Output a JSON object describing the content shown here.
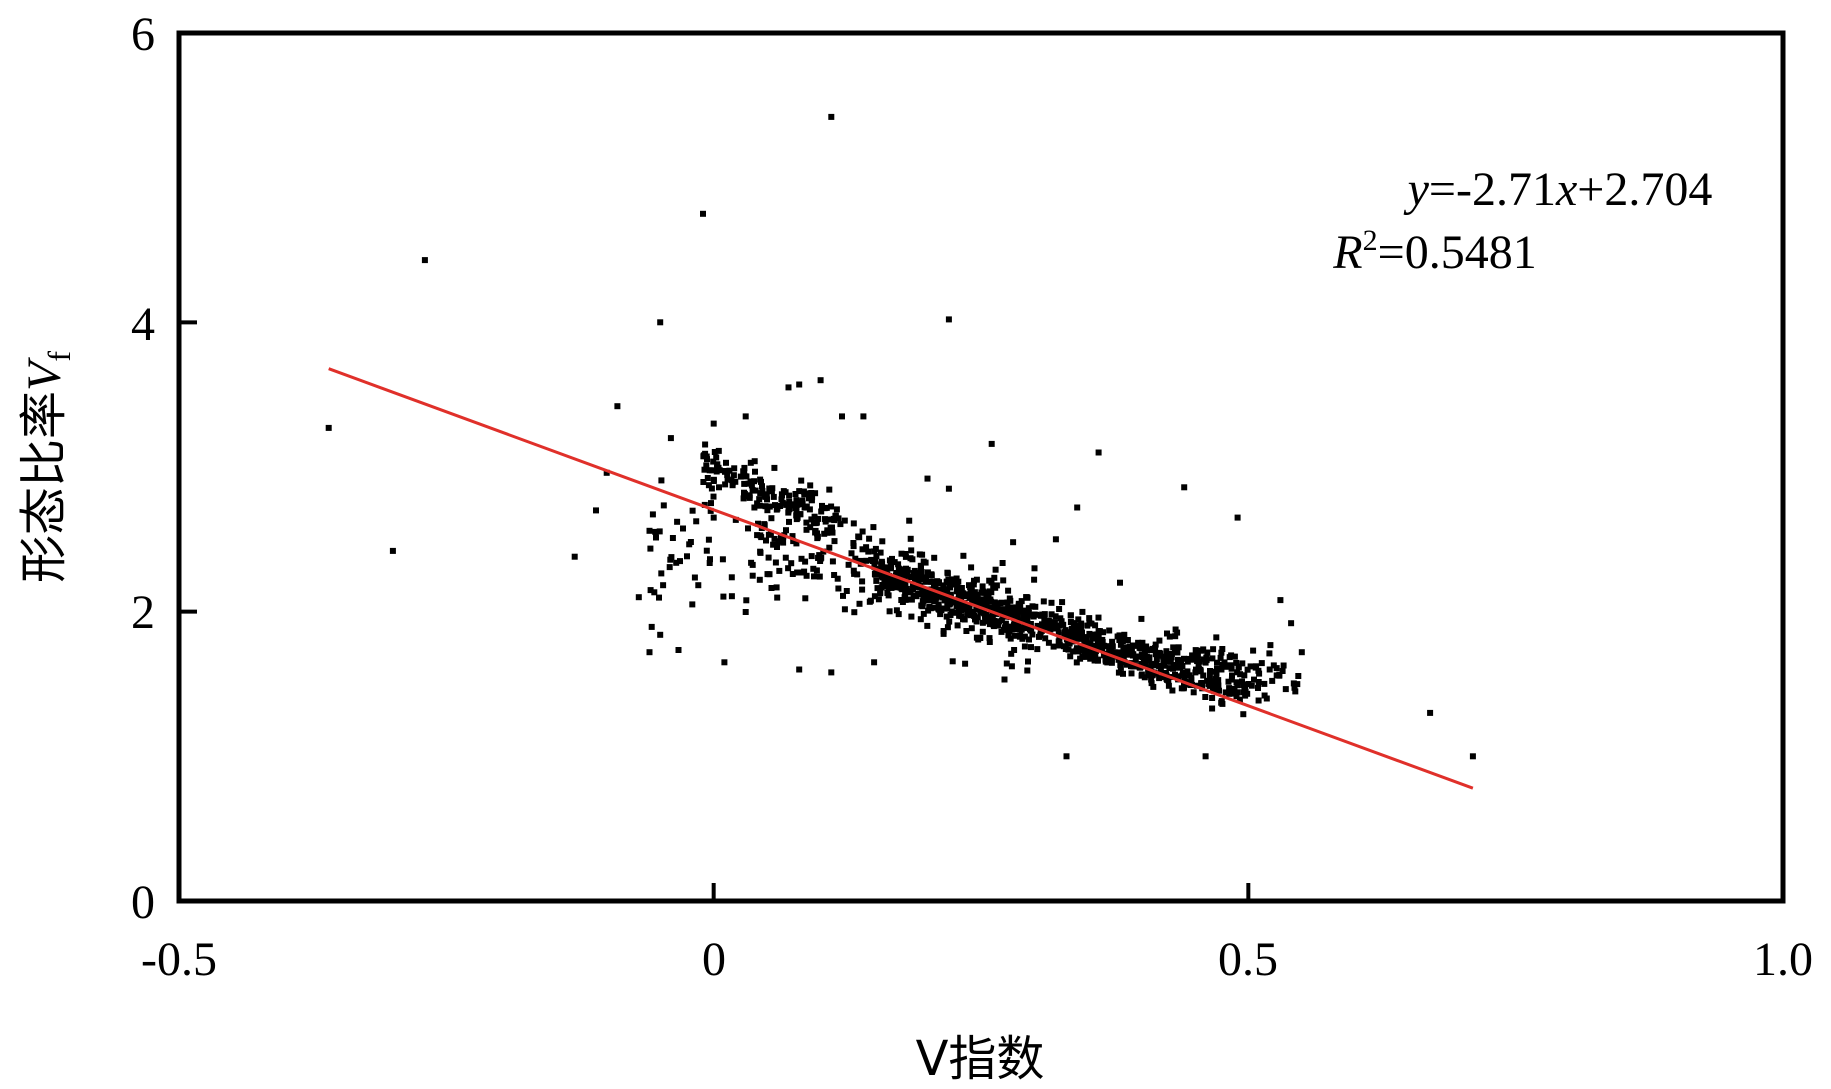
{
  "chart_data": {
    "type": "scatter",
    "xlabel": "V指数",
    "ylabel": "形态比率",
    "ylabel_symbol": "V",
    "ylabel_subscript": "f",
    "xlim": [
      -0.5,
      1.0
    ],
    "ylim": [
      0,
      6
    ],
    "x_ticks": [
      "-0.5",
      "0",
      "0.5",
      "1.0"
    ],
    "y_ticks": [
      "0",
      "2",
      "4",
      "6"
    ],
    "grid": false,
    "point_color": "#000000",
    "trendline": {
      "slope": -2.71,
      "intercept": 2.704,
      "x_range": [
        -0.36,
        0.71
      ],
      "color": "#e0302a",
      "equation": {
        "y_var": "y",
        "eq_part": "=-2.71",
        "x_var": "x",
        "const_part": "+2.704",
        "r_var": "R",
        "r_exp": "2",
        "r_value": "=0.5481"
      }
    },
    "outliers": [
      [
        -0.36,
        3.27
      ],
      [
        -0.3,
        2.42
      ],
      [
        -0.27,
        4.43
      ],
      [
        0.11,
        5.42
      ],
      [
        -0.01,
        4.75
      ],
      [
        -0.05,
        4.0
      ],
      [
        0.22,
        4.02
      ],
      [
        -0.13,
        2.38
      ],
      [
        -0.11,
        2.7
      ],
      [
        -0.1,
        2.96
      ],
      [
        -0.09,
        3.42
      ],
      [
        -0.07,
        2.1
      ],
      [
        -0.06,
        1.72
      ],
      [
        -0.05,
        1.84
      ],
      [
        0.01,
        1.65
      ],
      [
        0.08,
        1.6
      ],
      [
        0.11,
        1.58
      ],
      [
        0.33,
        1.0
      ],
      [
        0.46,
        1.0
      ],
      [
        0.67,
        1.3
      ],
      [
        0.71,
        1.0
      ],
      [
        0.49,
        2.65
      ],
      [
        0.44,
        2.86
      ],
      [
        0.36,
        3.1
      ],
      [
        0.34,
        2.72
      ],
      [
        0.08,
        3.57
      ],
      [
        0.1,
        3.6
      ],
      [
        0.12,
        3.35
      ],
      [
        0.14,
        3.35
      ],
      [
        0.26,
        3.16
      ],
      [
        0.55,
        1.72
      ],
      [
        0.54,
        1.92
      ],
      [
        0.53,
        2.08
      ],
      [
        0.52,
        1.6
      ],
      [
        0.5,
        1.5
      ],
      [
        0.03,
        3.35
      ],
      [
        0.0,
        3.3
      ],
      [
        -0.02,
        2.05
      ],
      [
        0.0,
        2.65
      ],
      [
        0.2,
        2.92
      ],
      [
        0.28,
        2.48
      ],
      [
        0.3,
        2.3
      ],
      [
        0.32,
        2.5
      ],
      [
        0.38,
        2.2
      ],
      [
        0.4,
        1.95
      ],
      [
        0.07,
        3.55
      ],
      [
        -0.04,
        3.2
      ],
      [
        0.22,
        2.85
      ],
      [
        0.27,
        2.0
      ],
      [
        0.15,
        1.65
      ]
    ],
    "clusters": [
      {
        "x": [
          0.15,
          0.5
        ],
        "intercept": 2.62,
        "slope": -2.35,
        "spread": 0.14,
        "n": 760
      },
      {
        "x": [
          -0.01,
          0.12
        ],
        "intercept": 2.98,
        "slope": -3.2,
        "spread": 0.16,
        "n": 150
      },
      {
        "x": [
          0.04,
          0.3
        ],
        "intercept": 2.7,
        "slope": -2.71,
        "spread": 0.32,
        "n": 260
      },
      {
        "x": [
          -0.06,
          0.06
        ],
        "intercept": 2.35,
        "slope": 0.0,
        "spread": 0.38,
        "n": 60
      },
      {
        "x": [
          0.42,
          0.55
        ],
        "intercept": 2.4,
        "slope": -1.6,
        "spread": 0.15,
        "n": 70
      }
    ]
  }
}
